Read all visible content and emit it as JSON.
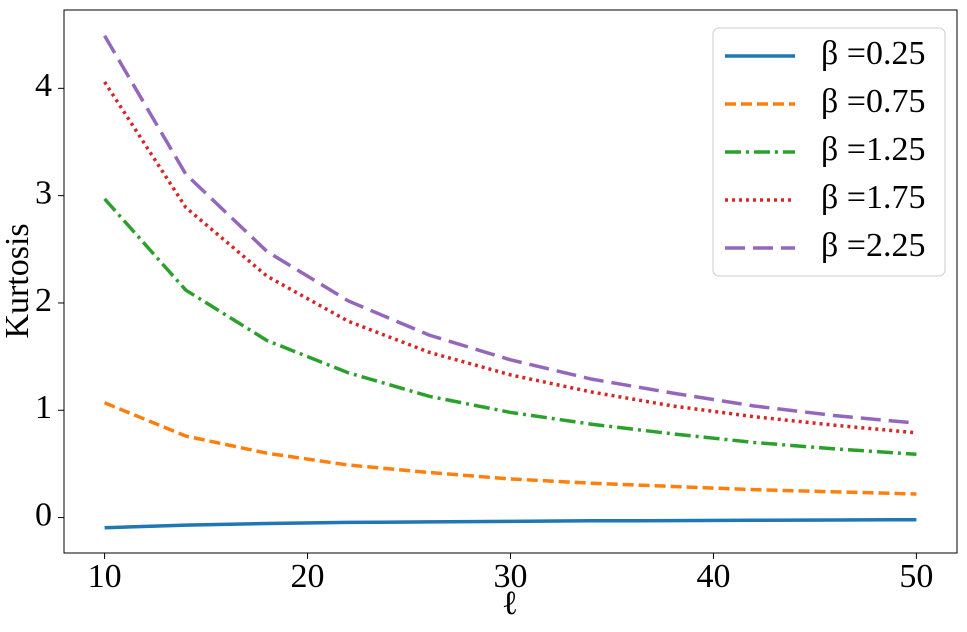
{
  "chart_data": {
    "type": "line",
    "xlabel": "ℓ",
    "ylabel": "Kurtosis",
    "x": [
      10,
      14,
      18,
      22,
      26,
      30,
      34,
      38,
      42,
      46,
      50
    ],
    "xlim": [
      8,
      52
    ],
    "xticks": [
      10,
      20,
      30,
      40,
      50
    ],
    "ylim": [
      -0.33,
      4.73
    ],
    "yticks": [
      0,
      1,
      2,
      3,
      4
    ],
    "legend": "upper right",
    "grid": false,
    "series": [
      {
        "name": "β =0.25",
        "color": "#1f77b4",
        "dash": "solid",
        "values": [
          -0.095,
          -0.07,
          -0.055,
          -0.045,
          -0.04,
          -0.035,
          -0.03,
          -0.028,
          -0.025,
          -0.022,
          -0.02
        ]
      },
      {
        "name": "β =0.75",
        "color": "#ff7f0e",
        "dash": "dashed",
        "values": [
          1.07,
          0.76,
          0.6,
          0.49,
          0.42,
          0.36,
          0.32,
          0.29,
          0.26,
          0.24,
          0.22
        ]
      },
      {
        "name": "β =1.25",
        "color": "#2ca02c",
        "dash": "dashdot",
        "values": [
          2.97,
          2.12,
          1.65,
          1.35,
          1.13,
          0.98,
          0.87,
          0.78,
          0.7,
          0.64,
          0.59
        ]
      },
      {
        "name": "β =1.75",
        "color": "#d62728",
        "dash": "dotted",
        "values": [
          4.06,
          2.89,
          2.25,
          1.83,
          1.54,
          1.33,
          1.17,
          1.04,
          0.94,
          0.86,
          0.79
        ]
      },
      {
        "name": "β =2.25",
        "color": "#9467bd",
        "dash": "longdash",
        "values": [
          4.49,
          3.2,
          2.48,
          2.02,
          1.7,
          1.47,
          1.29,
          1.16,
          1.04,
          0.95,
          0.88
        ]
      }
    ]
  }
}
